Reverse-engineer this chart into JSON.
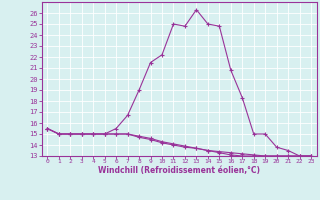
{
  "xlabel": "Windchill (Refroidissement éolien,°C)",
  "x": [
    0,
    1,
    2,
    3,
    4,
    5,
    6,
    7,
    8,
    9,
    10,
    11,
    12,
    13,
    14,
    15,
    16,
    17,
    18,
    19,
    20,
    21,
    22,
    23
  ],
  "line1": [
    15.5,
    15.0,
    15.0,
    15.0,
    15.0,
    15.0,
    15.5,
    16.7,
    19.0,
    21.5,
    22.2,
    25.0,
    24.8,
    26.3,
    25.0,
    24.8,
    20.8,
    18.3,
    15.0,
    15.0,
    13.8,
    13.5,
    13.0,
    13.0
  ],
  "line2": [
    15.5,
    15.0,
    15.0,
    15.0,
    15.0,
    15.0,
    15.0,
    15.0,
    14.7,
    14.5,
    14.2,
    14.0,
    13.8,
    13.7,
    13.5,
    13.4,
    13.3,
    13.2,
    13.1,
    13.0,
    13.0,
    13.0,
    13.0,
    13.0
  ],
  "line3": [
    15.5,
    15.0,
    15.0,
    15.0,
    15.0,
    15.0,
    15.0,
    15.0,
    14.8,
    14.6,
    14.3,
    14.1,
    13.9,
    13.7,
    13.5,
    13.3,
    13.1,
    13.0,
    13.0,
    13.0,
    13.0,
    13.0,
    13.0,
    13.0
  ],
  "line_color": "#993399",
  "bg_color": "#d8f0f0",
  "grid_color": "#ffffff",
  "ylim": [
    13,
    27
  ],
  "xlim": [
    -0.5,
    23.5
  ],
  "yticks": [
    13,
    14,
    15,
    16,
    17,
    18,
    19,
    20,
    21,
    22,
    23,
    24,
    25,
    26
  ],
  "xticks": [
    0,
    1,
    2,
    3,
    4,
    5,
    6,
    7,
    8,
    9,
    10,
    11,
    12,
    13,
    14,
    15,
    16,
    17,
    18,
    19,
    20,
    21,
    22,
    23
  ]
}
